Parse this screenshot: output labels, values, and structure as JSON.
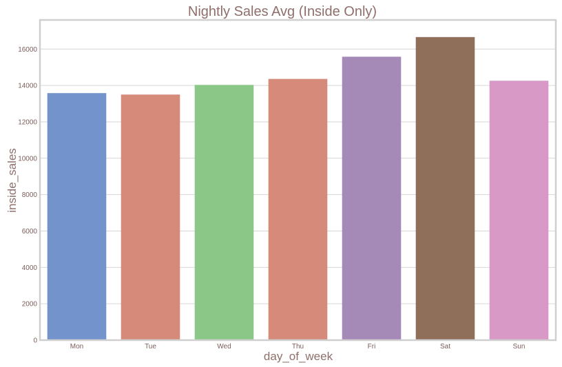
{
  "chart_data": {
    "type": "bar",
    "title": "Nightly Sales Avg (Inside Only)",
    "xlabel": "day_of_week",
    "ylabel": "inside_sales",
    "categories": [
      "Mon",
      "Tue",
      "Wed",
      "Thu",
      "Fri",
      "Sat",
      "Sun"
    ],
    "values": [
      13580,
      13500,
      14030,
      14360,
      15580,
      16660,
      14260
    ],
    "ylim": [
      0,
      17600
    ],
    "yticks": [
      0,
      2000,
      4000,
      6000,
      8000,
      10000,
      12000,
      14000,
      16000
    ],
    "grid": true,
    "legend": "none",
    "colors": [
      "#7293cb",
      "#d68b7a",
      "#8bc786",
      "#d68b7a",
      "#a58ab8",
      "#8f6f5a",
      "#d899c6"
    ]
  }
}
